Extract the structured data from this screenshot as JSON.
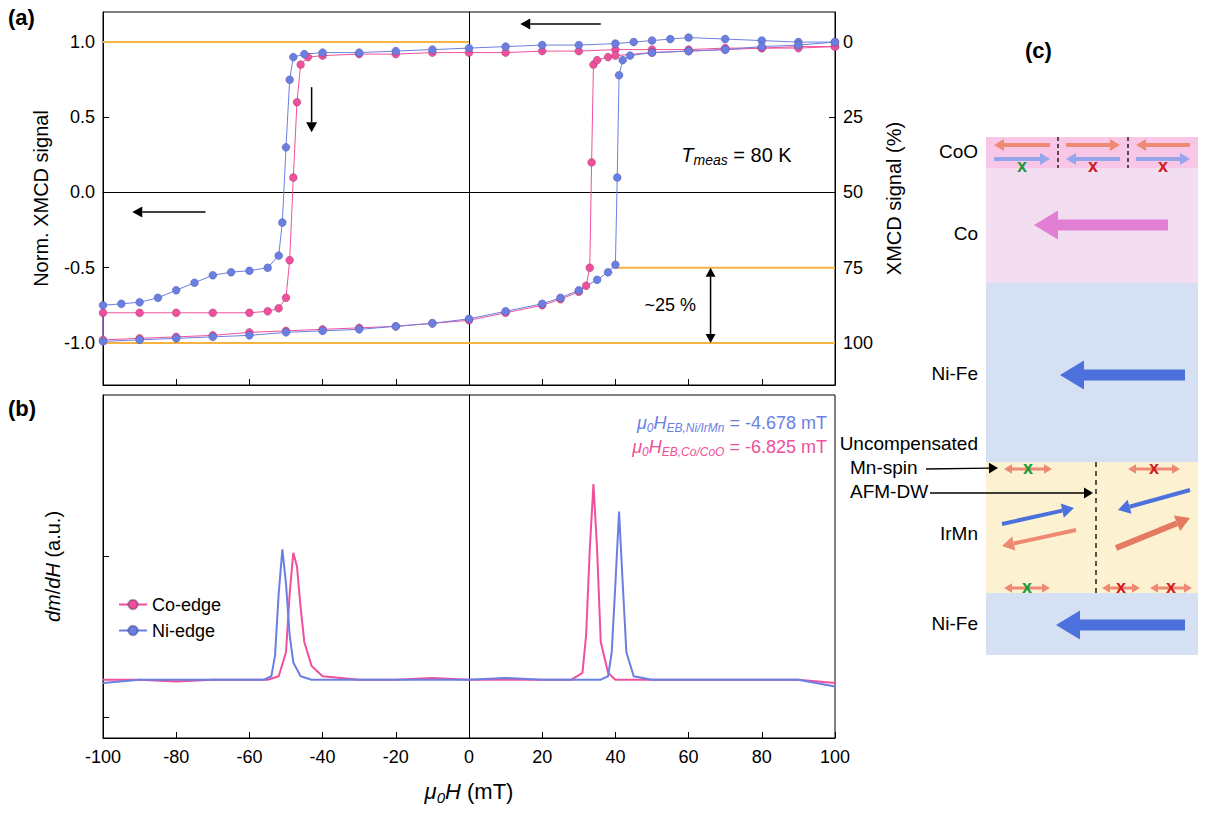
{
  "chart_data": [
    {
      "type": "line",
      "panel": "(a)",
      "y_label": "Norm. XMCD signal",
      "y2_label": "XMCD signal (%)",
      "xlim": [
        -100,
        100
      ],
      "xticks": [
        -100,
        -80,
        -60,
        -40,
        -20,
        0,
        20,
        40,
        60,
        80,
        100
      ],
      "ylim": [
        -1.28,
        1.2
      ],
      "yticks": [
        {
          "value": -1.0,
          "label": "-1.0"
        },
        {
          "value": -0.5,
          "label": "-0.5"
        },
        {
          "value": 0,
          "label": "0.0"
        },
        {
          "value": 0.5,
          "label": "0.5"
        },
        {
          "value": 1.0,
          "label": "1.0"
        }
      ],
      "y2lim": [
        114,
        -10
      ],
      "y2ticks": [
        0,
        25,
        50,
        75,
        100
      ],
      "tick_labels": "y",
      "grid": false,
      "marker": "circle",
      "series": [
        {
          "name": "Co-edge",
          "color": "#f0509b",
          "x": [
            100,
            90,
            80,
            70,
            60,
            50,
            40,
            30,
            20,
            10,
            0,
            -10,
            -20,
            -30,
            -40,
            -44,
            -46,
            -47,
            -48,
            -49,
            -50,
            -52,
            -55,
            -60,
            -70,
            -80,
            -90,
            -100,
            -100,
            -90,
            -80,
            -70,
            -60,
            -50,
            -40,
            -30,
            -20,
            -10,
            0,
            10,
            20,
            25,
            30,
            32,
            33,
            33.5,
            34,
            35,
            38,
            40,
            50,
            60,
            70,
            80,
            90,
            100
          ],
          "values": [
            0.97,
            0.97,
            0.96,
            0.96,
            0.95,
            0.95,
            0.95,
            0.94,
            0.94,
            0.93,
            0.93,
            0.93,
            0.92,
            0.92,
            0.91,
            0.9,
            0.85,
            0.6,
            0.1,
            -0.45,
            -0.7,
            -0.77,
            -0.79,
            -0.8,
            -0.8,
            -0.8,
            -0.8,
            -0.8,
            -0.98,
            -0.97,
            -0.96,
            -0.95,
            -0.93,
            -0.92,
            -0.91,
            -0.9,
            -0.89,
            -0.87,
            -0.85,
            -0.8,
            -0.75,
            -0.71,
            -0.66,
            -0.62,
            -0.5,
            0.2,
            0.85,
            0.88,
            0.9,
            0.91,
            0.93,
            0.94,
            0.95,
            0.96,
            0.96,
            0.97
          ]
        },
        {
          "name": "Ni-edge",
          "color": "#6b7fe3",
          "x": [
            100,
            90,
            80,
            70,
            60,
            55,
            50,
            45,
            40,
            30,
            20,
            10,
            0,
            -10,
            -20,
            -30,
            -40,
            -45,
            -48,
            -49,
            -50,
            -51,
            -52,
            -55,
            -60,
            -65,
            -70,
            -75,
            -80,
            -85,
            -90,
            -95,
            -100,
            -100,
            -90,
            -80,
            -70,
            -60,
            -50,
            -40,
            -30,
            -20,
            -10,
            0,
            10,
            20,
            25,
            30,
            35,
            38,
            40,
            40.5,
            41,
            42,
            44,
            50,
            60,
            70,
            80,
            90,
            100
          ],
          "values": [
            1.0,
            1.0,
            1.01,
            1.02,
            1.03,
            1.02,
            1.01,
            1.0,
            0.99,
            0.98,
            0.98,
            0.97,
            0.96,
            0.95,
            0.94,
            0.93,
            0.93,
            0.92,
            0.9,
            0.75,
            0.3,
            -0.2,
            -0.42,
            -0.5,
            -0.52,
            -0.53,
            -0.55,
            -0.6,
            -0.65,
            -0.7,
            -0.73,
            -0.74,
            -0.75,
            -0.99,
            -0.98,
            -0.97,
            -0.96,
            -0.95,
            -0.93,
            -0.92,
            -0.91,
            -0.89,
            -0.87,
            -0.84,
            -0.79,
            -0.74,
            -0.7,
            -0.65,
            -0.58,
            -0.53,
            -0.48,
            0.1,
            0.78,
            0.88,
            0.91,
            0.93,
            0.94,
            0.95,
            0.97,
            0.98,
            1.0
          ]
        }
      ],
      "reference_lines": {
        "color": "#f5b342",
        "lines": [
          {
            "y": 1.0,
            "x": [
              -100,
              0
            ]
          },
          {
            "y": -0.5,
            "x": [
              40,
              100
            ]
          },
          {
            "y": -1.0,
            "x": [
              -100,
              100
            ]
          }
        ]
      },
      "bracket": {
        "text": "~25 %",
        "span": [
          -0.5,
          -1.0
        ]
      },
      "annotation": {
        "parts": [
          {
            "t": "T",
            "italic": true
          },
          {
            "t": "meas",
            "italic": true,
            "sub": true
          },
          {
            "t": " = 80 K"
          }
        ]
      }
    },
    {
      "type": "line",
      "panel": "(b)",
      "x_label": {
        "parts": [
          {
            "t": "μ",
            "italic": true
          },
          {
            "t": "0",
            "italic": true,
            "sub": true
          },
          {
            "t": "H",
            "italic": true
          },
          {
            "t": " (mT)"
          }
        ]
      },
      "y_label": {
        "parts": [
          {
            "t": "dm",
            "italic": true
          },
          {
            "t": "/"
          },
          {
            "t": "dH",
            "italic": true
          },
          {
            "t": " (a.u.)"
          }
        ]
      },
      "xlim": [
        -100,
        100
      ],
      "xticks": [
        -100,
        -80,
        -60,
        -40,
        -20,
        0,
        20,
        40,
        60,
        80,
        100
      ],
      "ylim": [
        0,
        1
      ],
      "yticks": [
        0.06,
        0.53
      ],
      "tick_labels": "x",
      "grid": false,
      "legend": "left",
      "marker": "none",
      "series": [
        {
          "name": "Co-edge",
          "color": "#f0509b",
          "x": [
            -100,
            -90,
            -80,
            -70,
            -60,
            -55,
            -52,
            -50,
            -49,
            -48,
            -47,
            -46,
            -45,
            -43,
            -40,
            -30,
            -20,
            -10,
            0,
            10,
            20,
            28,
            31,
            32,
            33,
            34,
            35,
            36,
            38,
            40,
            50,
            60,
            70,
            80,
            90,
            100
          ],
          "values": [
            0.17,
            0.17,
            0.165,
            0.17,
            0.17,
            0.17,
            0.18,
            0.25,
            0.42,
            0.54,
            0.5,
            0.38,
            0.28,
            0.21,
            0.18,
            0.17,
            0.17,
            0.175,
            0.17,
            0.17,
            0.17,
            0.17,
            0.19,
            0.3,
            0.55,
            0.74,
            0.55,
            0.28,
            0.19,
            0.17,
            0.17,
            0.17,
            0.17,
            0.17,
            0.17,
            0.16
          ]
        },
        {
          "name": "Ni-edge",
          "color": "#6b7fe3",
          "x": [
            -100,
            -90,
            -80,
            -70,
            -60,
            -56,
            -54,
            -53,
            -52,
            -51,
            -50,
            -49,
            -48,
            -46,
            -43,
            -40,
            -30,
            -20,
            -10,
            0,
            10,
            20,
            30,
            36,
            38,
            39,
            40,
            41,
            42,
            43,
            45,
            50,
            60,
            70,
            80,
            90,
            100
          ],
          "values": [
            0.16,
            0.17,
            0.17,
            0.17,
            0.17,
            0.17,
            0.18,
            0.24,
            0.42,
            0.55,
            0.45,
            0.3,
            0.22,
            0.18,
            0.17,
            0.17,
            0.17,
            0.17,
            0.17,
            0.17,
            0.175,
            0.17,
            0.17,
            0.17,
            0.18,
            0.25,
            0.45,
            0.66,
            0.45,
            0.25,
            0.18,
            0.17,
            0.17,
            0.17,
            0.17,
            0.17,
            0.15
          ]
        }
      ],
      "annotations": [
        {
          "color": "#6b7fe3",
          "parts": [
            {
              "t": "μ",
              "italic": true
            },
            {
              "t": "0",
              "italic": true,
              "sub": true
            },
            {
              "t": "H",
              "italic": true
            },
            {
              "t": "EB,Ni/IrMn",
              "italic": true,
              "sub": true
            },
            {
              "t": " = -4.678 mT"
            }
          ]
        },
        {
          "color": "#f0509b",
          "parts": [
            {
              "t": "μ",
              "italic": true
            },
            {
              "t": "0",
              "italic": true,
              "sub": true
            },
            {
              "t": "H",
              "italic": true
            },
            {
              "t": "EB,Co/CoO",
              "italic": true,
              "sub": true
            },
            {
              "t": " = -6.825 mT"
            }
          ]
        }
      ]
    }
  ],
  "diagram": {
    "panel": "(c)",
    "layers": [
      {
        "label": "CoO",
        "color": "#f8c6e6"
      },
      {
        "label": "Co",
        "color": "#f2ddf1"
      },
      {
        "label": "Ni-Fe",
        "color": "#d5e1f2"
      },
      {
        "label": "IrMn",
        "color": "#fcf2d2"
      },
      {
        "label": "Ni-Fe",
        "color": "#d5e1f2"
      }
    ],
    "callouts": [
      "Uncompensated",
      "Mn-spin",
      "AFM-DW"
    ],
    "mark": "x",
    "mark_colors": [
      "#1a9a3a",
      "#d01c1c"
    ]
  }
}
